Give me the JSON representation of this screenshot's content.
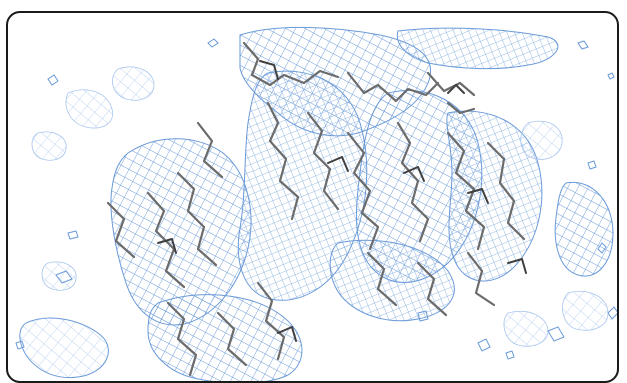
{
  "viewer": {
    "content": "electron-density-map-with-molecular-model",
    "mesh_color": "#6a9ad8",
    "mesh_light_color": "#a9c6ee",
    "model_color": "#6b6b6b",
    "model_dark_color": "#3f3f3f",
    "frame_color": "#1a1a1a",
    "background": "#ffffff"
  }
}
